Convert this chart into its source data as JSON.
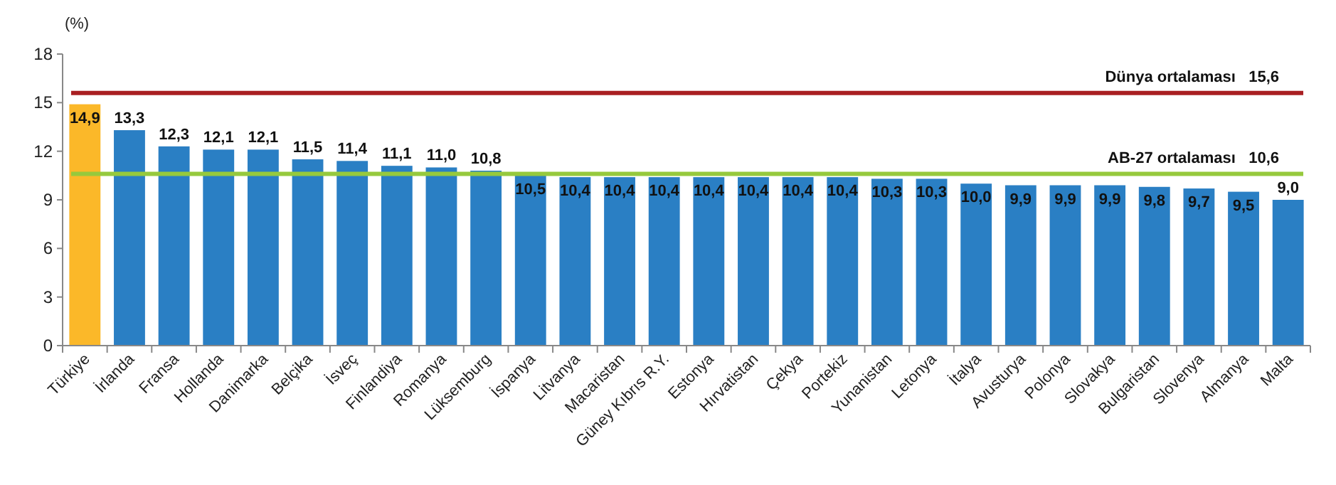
{
  "chart_data": {
    "type": "bar",
    "ylabel": "(%)",
    "categories": [
      "Türkiye",
      "İrlanda",
      "Fransa",
      "Hollanda",
      "Danimarka",
      "Belçika",
      "İsveç",
      "Finlandiya",
      "Romanya",
      "Lüksemburg",
      "İspanya",
      "Litvanya",
      "Macaristan",
      "Güney Kıbrıs R.Y.",
      "Estonya",
      "Hırvatistan",
      "Çekya",
      "Portekiz",
      "Yunanistan",
      "Letonya",
      "İtalya",
      "Avusturya",
      "Polonya",
      "Slovakya",
      "Bulgaristan",
      "Slovenya",
      "Almanya",
      "Malta"
    ],
    "values": [
      14.9,
      13.3,
      12.3,
      12.1,
      12.1,
      11.5,
      11.4,
      11.1,
      11.0,
      10.8,
      10.5,
      10.4,
      10.4,
      10.4,
      10.4,
      10.4,
      10.4,
      10.4,
      10.3,
      10.3,
      10.0,
      9.9,
      9.9,
      9.9,
      9.8,
      9.7,
      9.5,
      9.0
    ],
    "value_labels": [
      "14,9",
      "13,3",
      "12,3",
      "12,1",
      "12,1",
      "11,5",
      "11,4",
      "11,1",
      "11,0",
      "10,8",
      "10,5",
      "10,4",
      "10,4",
      "10,4",
      "10,4",
      "10,4",
      "10,4",
      "10,4",
      "10,3",
      "10,3",
      "10,0",
      "9,9",
      "9,9",
      "9,9",
      "9,8",
      "9,7",
      "9,5",
      "9,0"
    ],
    "colors": [
      "#fbb829",
      "#2a7fc4",
      "#2a7fc4",
      "#2a7fc4",
      "#2a7fc4",
      "#2a7fc4",
      "#2a7fc4",
      "#2a7fc4",
      "#2a7fc4",
      "#2a7fc4",
      "#2a7fc4",
      "#2a7fc4",
      "#2a7fc4",
      "#2a7fc4",
      "#2a7fc4",
      "#2a7fc4",
      "#2a7fc4",
      "#2a7fc4",
      "#2a7fc4",
      "#2a7fc4",
      "#2a7fc4",
      "#2a7fc4",
      "#2a7fc4",
      "#2a7fc4",
      "#2a7fc4",
      "#2a7fc4",
      "#2a7fc4",
      "#2a7fc4"
    ],
    "ylim": [
      0,
      18
    ],
    "yticks": [
      0,
      3,
      6,
      9,
      12,
      15,
      18
    ],
    "grid": false,
    "ref_lines": [
      {
        "axis": "y",
        "value": 15.6,
        "label": "Dünya ortalaması   15,6",
        "color": "#a91f22"
      },
      {
        "axis": "y",
        "value": 10.6,
        "label": "AB-27 ortalaması   10,6",
        "color": "#96c93d"
      }
    ]
  }
}
